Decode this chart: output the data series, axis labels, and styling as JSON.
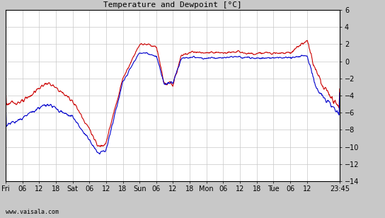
{
  "title": "Temperature and Dewpoint [°C]",
  "ylim": [
    -14,
    6
  ],
  "yticks": [
    -14,
    -12,
    -10,
    -8,
    -6,
    -4,
    -2,
    0,
    2,
    4,
    6
  ],
  "bg_color": "#c8c8c8",
  "plot_bg_color": "#ffffff",
  "grid_color": "#c8c8c8",
  "temp_color": "#cc0000",
  "dewp_color": "#0000cc",
  "line_width": 0.8,
  "watermark": "www.vaisala.com",
  "x_tick_labels": [
    "Fri",
    "06",
    "12",
    "18",
    "Sat",
    "06",
    "12",
    "18",
    "Sun",
    "06",
    "12",
    "18",
    "Mon",
    "06",
    "12",
    "18",
    "Tue",
    "06",
    "12",
    "23:45"
  ],
  "x_tick_pos": [
    0,
    6,
    12,
    18,
    24,
    30,
    36,
    42,
    48,
    54,
    60,
    66,
    72,
    78,
    84,
    90,
    96,
    102,
    108,
    119.75
  ],
  "xlim": [
    0,
    119.75
  ],
  "n_points": 960
}
